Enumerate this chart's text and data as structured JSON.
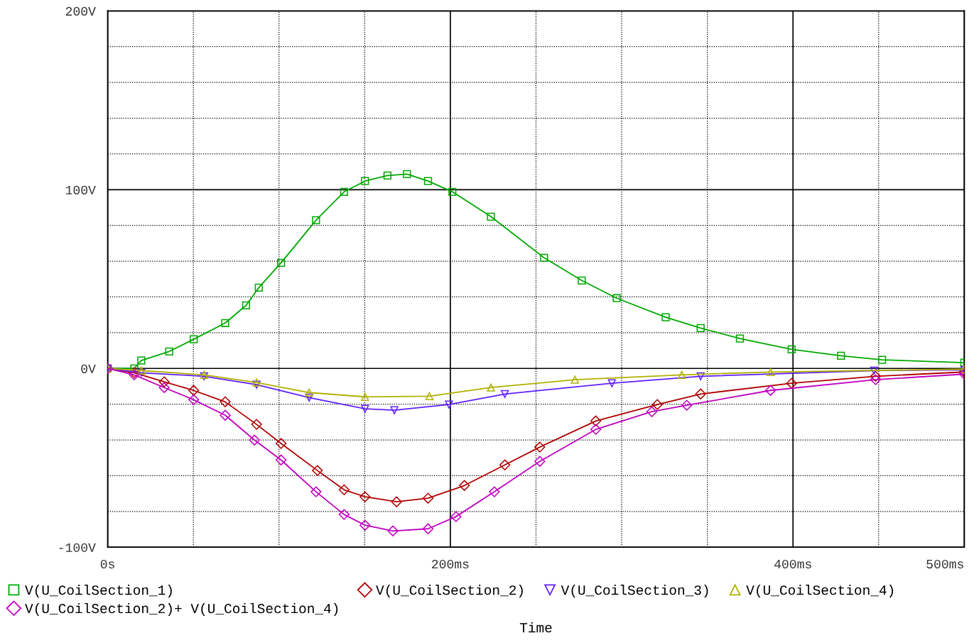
{
  "chart_data": {
    "type": "line",
    "xlabel": "Time",
    "legend": "bottom",
    "grid": true,
    "line_style": "solid",
    "xlim": [
      0,
      500
    ],
    "ylim": [
      -100,
      200
    ],
    "xticks": [
      {
        "value": 0,
        "label": "0s"
      },
      {
        "value": 50,
        "label": null
      },
      {
        "value": 100,
        "label": null
      },
      {
        "value": 150,
        "label": null
      },
      {
        "value": 200,
        "label": "200ms"
      },
      {
        "value": 250,
        "label": null
      },
      {
        "value": 300,
        "label": null
      },
      {
        "value": 350,
        "label": null
      },
      {
        "value": 400,
        "label": "400ms"
      },
      {
        "value": 450,
        "label": null
      },
      {
        "value": 500,
        "label": "500ms"
      }
    ],
    "yticks": [
      {
        "value": -100,
        "label": "-100V"
      },
      {
        "value": -80,
        "label": null
      },
      {
        "value": -60,
        "label": null
      },
      {
        "value": -40,
        "label": null
      },
      {
        "value": -20,
        "label": null
      },
      {
        "value": 0,
        "label": "0V"
      },
      {
        "value": 20,
        "label": null
      },
      {
        "value": 40,
        "label": null
      },
      {
        "value": 60,
        "label": null
      },
      {
        "value": 80,
        "label": null
      },
      {
        "value": 100,
        "label": "100V"
      },
      {
        "value": 120,
        "label": null
      },
      {
        "value": 140,
        "label": null
      },
      {
        "value": 160,
        "label": null
      },
      {
        "value": 180,
        "label": null
      },
      {
        "value": 200,
        "label": "200V"
      }
    ],
    "series": [
      {
        "name": "V(U_CoilSection_1)",
        "color": "#00a800",
        "marker": "square",
        "x": [
          0,
          15.5,
          19.6,
          35.9,
          50.2,
          68.6,
          80.8,
          88.2,
          101.2,
          121.6,
          138,
          150.2,
          163.3,
          174.7,
          187,
          201.2,
          223.7,
          254.7,
          276.7,
          297.1,
          325.7,
          346.1,
          369,
          399.2,
          428,
          452,
          500
        ],
        "values": [
          0,
          0,
          4.4,
          9.5,
          16.3,
          25.4,
          35.3,
          45.2,
          59.1,
          82.9,
          98.8,
          104.8,
          107.9,
          108.7,
          104.8,
          98.8,
          84.9,
          61.9,
          49.2,
          39.3,
          28.6,
          22.6,
          16.7,
          10.7,
          7.1,
          4.8,
          3.2
        ]
      },
      {
        "name": "V(U_CoilSection_2)",
        "color": "#b00000",
        "marker": "diamond",
        "x": [
          0,
          15.5,
          33,
          50.2,
          68.6,
          86.9,
          101.2,
          122.4,
          138,
          150.2,
          168.6,
          187,
          208.2,
          231.8,
          252.2,
          284.9,
          320.8,
          346.1,
          399.2,
          448.2,
          500
        ],
        "values": [
          0,
          -2.4,
          -7.5,
          -12.3,
          -18.7,
          -31.3,
          -42,
          -57.1,
          -67.9,
          -71.8,
          -74.6,
          -72.6,
          -65.5,
          -54,
          -44,
          -29.4,
          -20.2,
          -14.3,
          -8.3,
          -4.4,
          -2
        ]
      },
      {
        "name": "V(U_CoilSection_3)",
        "color": "#6020ff",
        "marker": "triangle_down",
        "x": [
          0,
          19.6,
          56.3,
          86.9,
          117.6,
          150.2,
          167.3,
          199.2,
          231.8,
          294.3,
          346.1,
          447.3,
          500
        ],
        "values": [
          0,
          -2.4,
          -4.4,
          -9.1,
          -16.3,
          -22.6,
          -23.4,
          -20.2,
          -14.3,
          -8.3,
          -4.4,
          -1.2,
          -0.8
        ]
      },
      {
        "name": "V(U_CoilSection_4)",
        "color": "#b0b000",
        "marker": "triangle",
        "x": [
          0,
          19.6,
          56.3,
          86.9,
          117.6,
          150.2,
          187.8,
          223.7,
          272.7,
          335.1,
          386.9,
          500
        ],
        "values": [
          0,
          -1.2,
          -3.6,
          -7.9,
          -13.5,
          -15.9,
          -15.5,
          -10.7,
          -6.3,
          -3.6,
          -2,
          -0.4
        ]
      },
      {
        "name": "V(U_CoilSection_2)+ V(U_CoilSection_4)",
        "color": "#c000c0",
        "marker": "diamond",
        "x": [
          0,
          15.5,
          33,
          50.2,
          68.6,
          85.7,
          101.2,
          121.6,
          138,
          150.2,
          166.5,
          187,
          203.3,
          225.7,
          252.2,
          284.9,
          317.6,
          338,
          386.9,
          448.2,
          500
        ],
        "values": [
          0,
          -3.6,
          -10.7,
          -17.5,
          -26.2,
          -40.1,
          -51.2,
          -69,
          -81.7,
          -87.7,
          -90.9,
          -89.7,
          -82.9,
          -69,
          -52,
          -34.1,
          -24.2,
          -20.6,
          -12.3,
          -6.3,
          -3.2
        ]
      }
    ]
  }
}
